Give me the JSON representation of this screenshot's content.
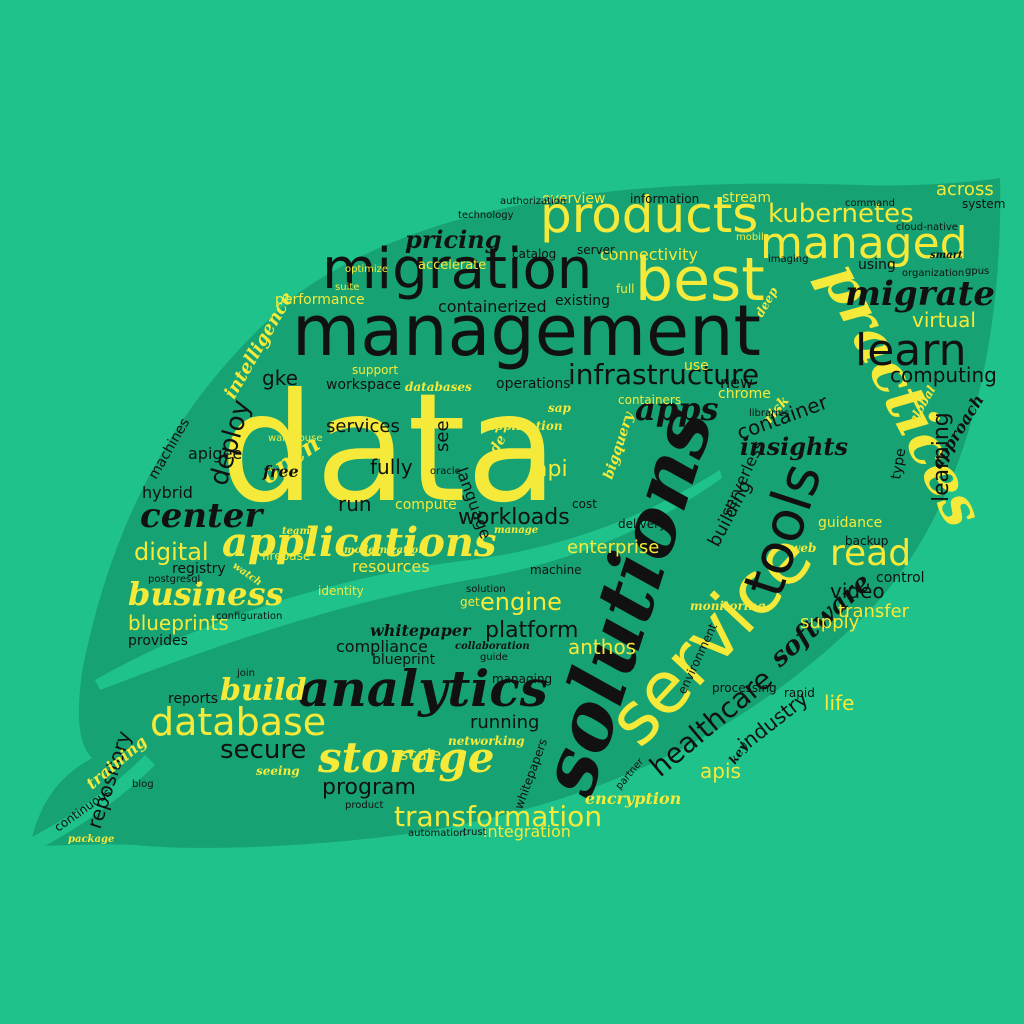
{
  "colors": {
    "background": "#1fc28a",
    "leaf": "#17a274",
    "yellow": "#f5ea3a",
    "dark": "#111111"
  },
  "words": [
    {
      "t": "data",
      "c": "y"
    },
    {
      "t": "management",
      "c": "d"
    },
    {
      "t": "solutions",
      "c": "d"
    },
    {
      "t": "service",
      "c": "y"
    },
    {
      "t": "migration",
      "c": "d"
    },
    {
      "t": "products",
      "c": "y"
    },
    {
      "t": "best",
      "c": "y"
    },
    {
      "t": "managed",
      "c": "y"
    },
    {
      "t": "practices",
      "c": "y"
    },
    {
      "t": "analytics",
      "c": "d"
    },
    {
      "t": "tools",
      "c": "d"
    },
    {
      "t": "applications",
      "c": "y"
    },
    {
      "t": "storage",
      "c": "y"
    },
    {
      "t": "database",
      "c": "y"
    },
    {
      "t": "infrastructure",
      "c": "d"
    },
    {
      "t": "learn",
      "c": "d"
    },
    {
      "t": "migrate",
      "c": "d"
    },
    {
      "t": "kubernetes",
      "c": "y"
    },
    {
      "t": "center",
      "c": "d"
    },
    {
      "t": "business",
      "c": "y"
    },
    {
      "t": "transformation",
      "c": "y"
    },
    {
      "t": "read",
      "c": "y"
    },
    {
      "t": "apps",
      "c": "d"
    },
    {
      "t": "build",
      "c": "y"
    },
    {
      "t": "healthcare",
      "c": "d"
    },
    {
      "t": "software",
      "c": "d"
    },
    {
      "t": "pricing",
      "c": "d"
    },
    {
      "t": "digital",
      "c": "y"
    },
    {
      "t": "secure",
      "c": "d"
    },
    {
      "t": "learning",
      "c": "d"
    },
    {
      "t": "platform",
      "c": "d"
    },
    {
      "t": "workloads",
      "c": "d"
    },
    {
      "t": "insights",
      "c": "d"
    },
    {
      "t": "computing",
      "c": "d"
    },
    {
      "t": "virtual",
      "c": "y"
    },
    {
      "t": "program",
      "c": "d"
    },
    {
      "t": "blueprints",
      "c": "y"
    },
    {
      "t": "deploy",
      "c": "d"
    },
    {
      "t": "containerized",
      "c": "d"
    },
    {
      "t": "engine",
      "c": "y"
    },
    {
      "t": "api",
      "c": "y"
    },
    {
      "t": "open",
      "c": "y"
    },
    {
      "t": "video",
      "c": "d"
    },
    {
      "t": "fully",
      "c": "d"
    },
    {
      "t": "services",
      "c": "d"
    },
    {
      "t": "repository",
      "c": "d"
    },
    {
      "t": "encryption",
      "c": "y"
    },
    {
      "t": "anthos",
      "c": "y"
    },
    {
      "t": "apis",
      "c": "y"
    },
    {
      "t": "running",
      "c": "d"
    },
    {
      "t": "connectivity",
      "c": "y"
    },
    {
      "t": "operations",
      "c": "d"
    },
    {
      "t": "enterprise",
      "c": "y"
    },
    {
      "t": "industry",
      "c": "d"
    },
    {
      "t": "container",
      "c": "d"
    },
    {
      "t": "intelligence",
      "c": "y"
    },
    {
      "t": "accelerate",
      "c": "y"
    },
    {
      "t": "performance",
      "c": "y"
    },
    {
      "t": "whitepaper",
      "c": "d"
    },
    {
      "t": "compliance",
      "c": "d"
    },
    {
      "t": "networking",
      "c": "y"
    },
    {
      "t": "integration",
      "c": "y"
    },
    {
      "t": "resources",
      "c": "y"
    },
    {
      "t": "hybrid",
      "c": "d"
    },
    {
      "t": "apigee",
      "c": "d"
    },
    {
      "t": "identity",
      "c": "y"
    },
    {
      "t": "overview",
      "c": "y"
    },
    {
      "t": "information",
      "c": "d"
    },
    {
      "t": "stream",
      "c": "y"
    },
    {
      "t": "across",
      "c": "y"
    },
    {
      "t": "using",
      "c": "d"
    },
    {
      "t": "existing",
      "c": "d"
    },
    {
      "t": "workspace",
      "c": "d"
    },
    {
      "t": "compute",
      "c": "y"
    },
    {
      "t": "transfer",
      "c": "y"
    },
    {
      "t": "supply",
      "c": "y"
    },
    {
      "t": "serverless",
      "c": "d"
    },
    {
      "t": "machines",
      "c": "d"
    },
    {
      "t": "registry",
      "c": "d"
    },
    {
      "t": "reports",
      "c": "d"
    },
    {
      "t": "language",
      "c": "d"
    },
    {
      "t": "catalog",
      "c": "d"
    },
    {
      "t": "delivery",
      "c": "d"
    },
    {
      "t": "processing",
      "c": "d"
    },
    {
      "t": "control",
      "c": "d"
    },
    {
      "t": "life",
      "c": "y"
    },
    {
      "t": "blueprint",
      "c": "d"
    },
    {
      "t": "managing",
      "c": "d"
    },
    {
      "t": "support",
      "c": "y"
    },
    {
      "t": "guidance",
      "c": "y"
    },
    {
      "t": "chrome",
      "c": "y"
    },
    {
      "t": "firebase",
      "c": "y"
    },
    {
      "t": "gke",
      "c": "d"
    },
    {
      "t": "see",
      "c": "d"
    },
    {
      "t": "run",
      "c": "d"
    },
    {
      "t": "free",
      "c": "d"
    },
    {
      "t": "new",
      "c": "d"
    },
    {
      "t": "sap",
      "c": "y"
    },
    {
      "t": "application",
      "c": "y"
    },
    {
      "t": "databases",
      "c": "y"
    },
    {
      "t": "system",
      "c": "d"
    },
    {
      "t": "technology",
      "c": "d"
    },
    {
      "t": "server",
      "c": "d"
    },
    {
      "t": "optimize",
      "c": "y"
    },
    {
      "t": "suite",
      "c": "y"
    },
    {
      "t": "machine",
      "c": "d"
    },
    {
      "t": "building",
      "c": "d"
    },
    {
      "t": "cost",
      "c": "d"
    },
    {
      "t": "manage",
      "c": "y"
    },
    {
      "t": "teams",
      "c": "y"
    },
    {
      "t": "watch",
      "c": "y"
    },
    {
      "t": "modernization",
      "c": "y"
    },
    {
      "t": "provides",
      "c": "d"
    },
    {
      "t": "configuration",
      "c": "d"
    },
    {
      "t": "collaboration",
      "c": "y"
    },
    {
      "t": "approach",
      "c": "d"
    },
    {
      "t": "monitoring",
      "c": "y"
    },
    {
      "t": "training",
      "c": "y"
    },
    {
      "t": "seeing",
      "c": "y"
    },
    {
      "t": "postgresql",
      "c": "d"
    },
    {
      "t": "automation",
      "c": "d"
    },
    {
      "t": "trust",
      "c": "d"
    },
    {
      "t": "blog",
      "c": "d"
    },
    {
      "t": "code",
      "c": "y"
    },
    {
      "t": "backup",
      "c": "d"
    },
    {
      "t": "gpus",
      "c": "d"
    },
    {
      "t": "imaging",
      "c": "d"
    },
    {
      "t": "type",
      "c": "d"
    },
    {
      "t": "risk",
      "c": "y"
    },
    {
      "t": "web",
      "c": "y"
    },
    {
      "t": "deep",
      "c": "y"
    },
    {
      "t": "command",
      "c": "d"
    },
    {
      "t": "organization",
      "c": "d"
    },
    {
      "t": "bigquery",
      "c": "y"
    },
    {
      "t": "scale",
      "c": "y"
    },
    {
      "t": "full",
      "c": "y"
    },
    {
      "t": "environment",
      "c": "d"
    },
    {
      "t": "partner",
      "c": "d"
    },
    {
      "t": "key",
      "c": "d"
    },
    {
      "t": "oracle",
      "c": "d"
    },
    {
      "t": "rapid",
      "c": "d"
    },
    {
      "t": "guide",
      "c": "d"
    },
    {
      "t": "product",
      "c": "d"
    },
    {
      "t": "whitepapers",
      "c": "d"
    },
    {
      "t": "smart",
      "c": "d"
    },
    {
      "t": "global",
      "c": "y"
    },
    {
      "t": "warehouse",
      "c": "y"
    },
    {
      "t": "solution",
      "c": "d"
    },
    {
      "t": "get",
      "c": "y"
    },
    {
      "t": "join",
      "c": "d"
    },
    {
      "t": "use",
      "c": "y"
    },
    {
      "t": "mobile",
      "c": "y"
    },
    {
      "t": "containers",
      "c": "y"
    },
    {
      "t": "libraries",
      "c": "d"
    },
    {
      "t": "cloud-native",
      "c": "d"
    },
    {
      "t": "authorization",
      "c": "d"
    },
    {
      "t": "continuous",
      "c": "d"
    },
    {
      "t": "package",
      "c": "y"
    }
  ]
}
